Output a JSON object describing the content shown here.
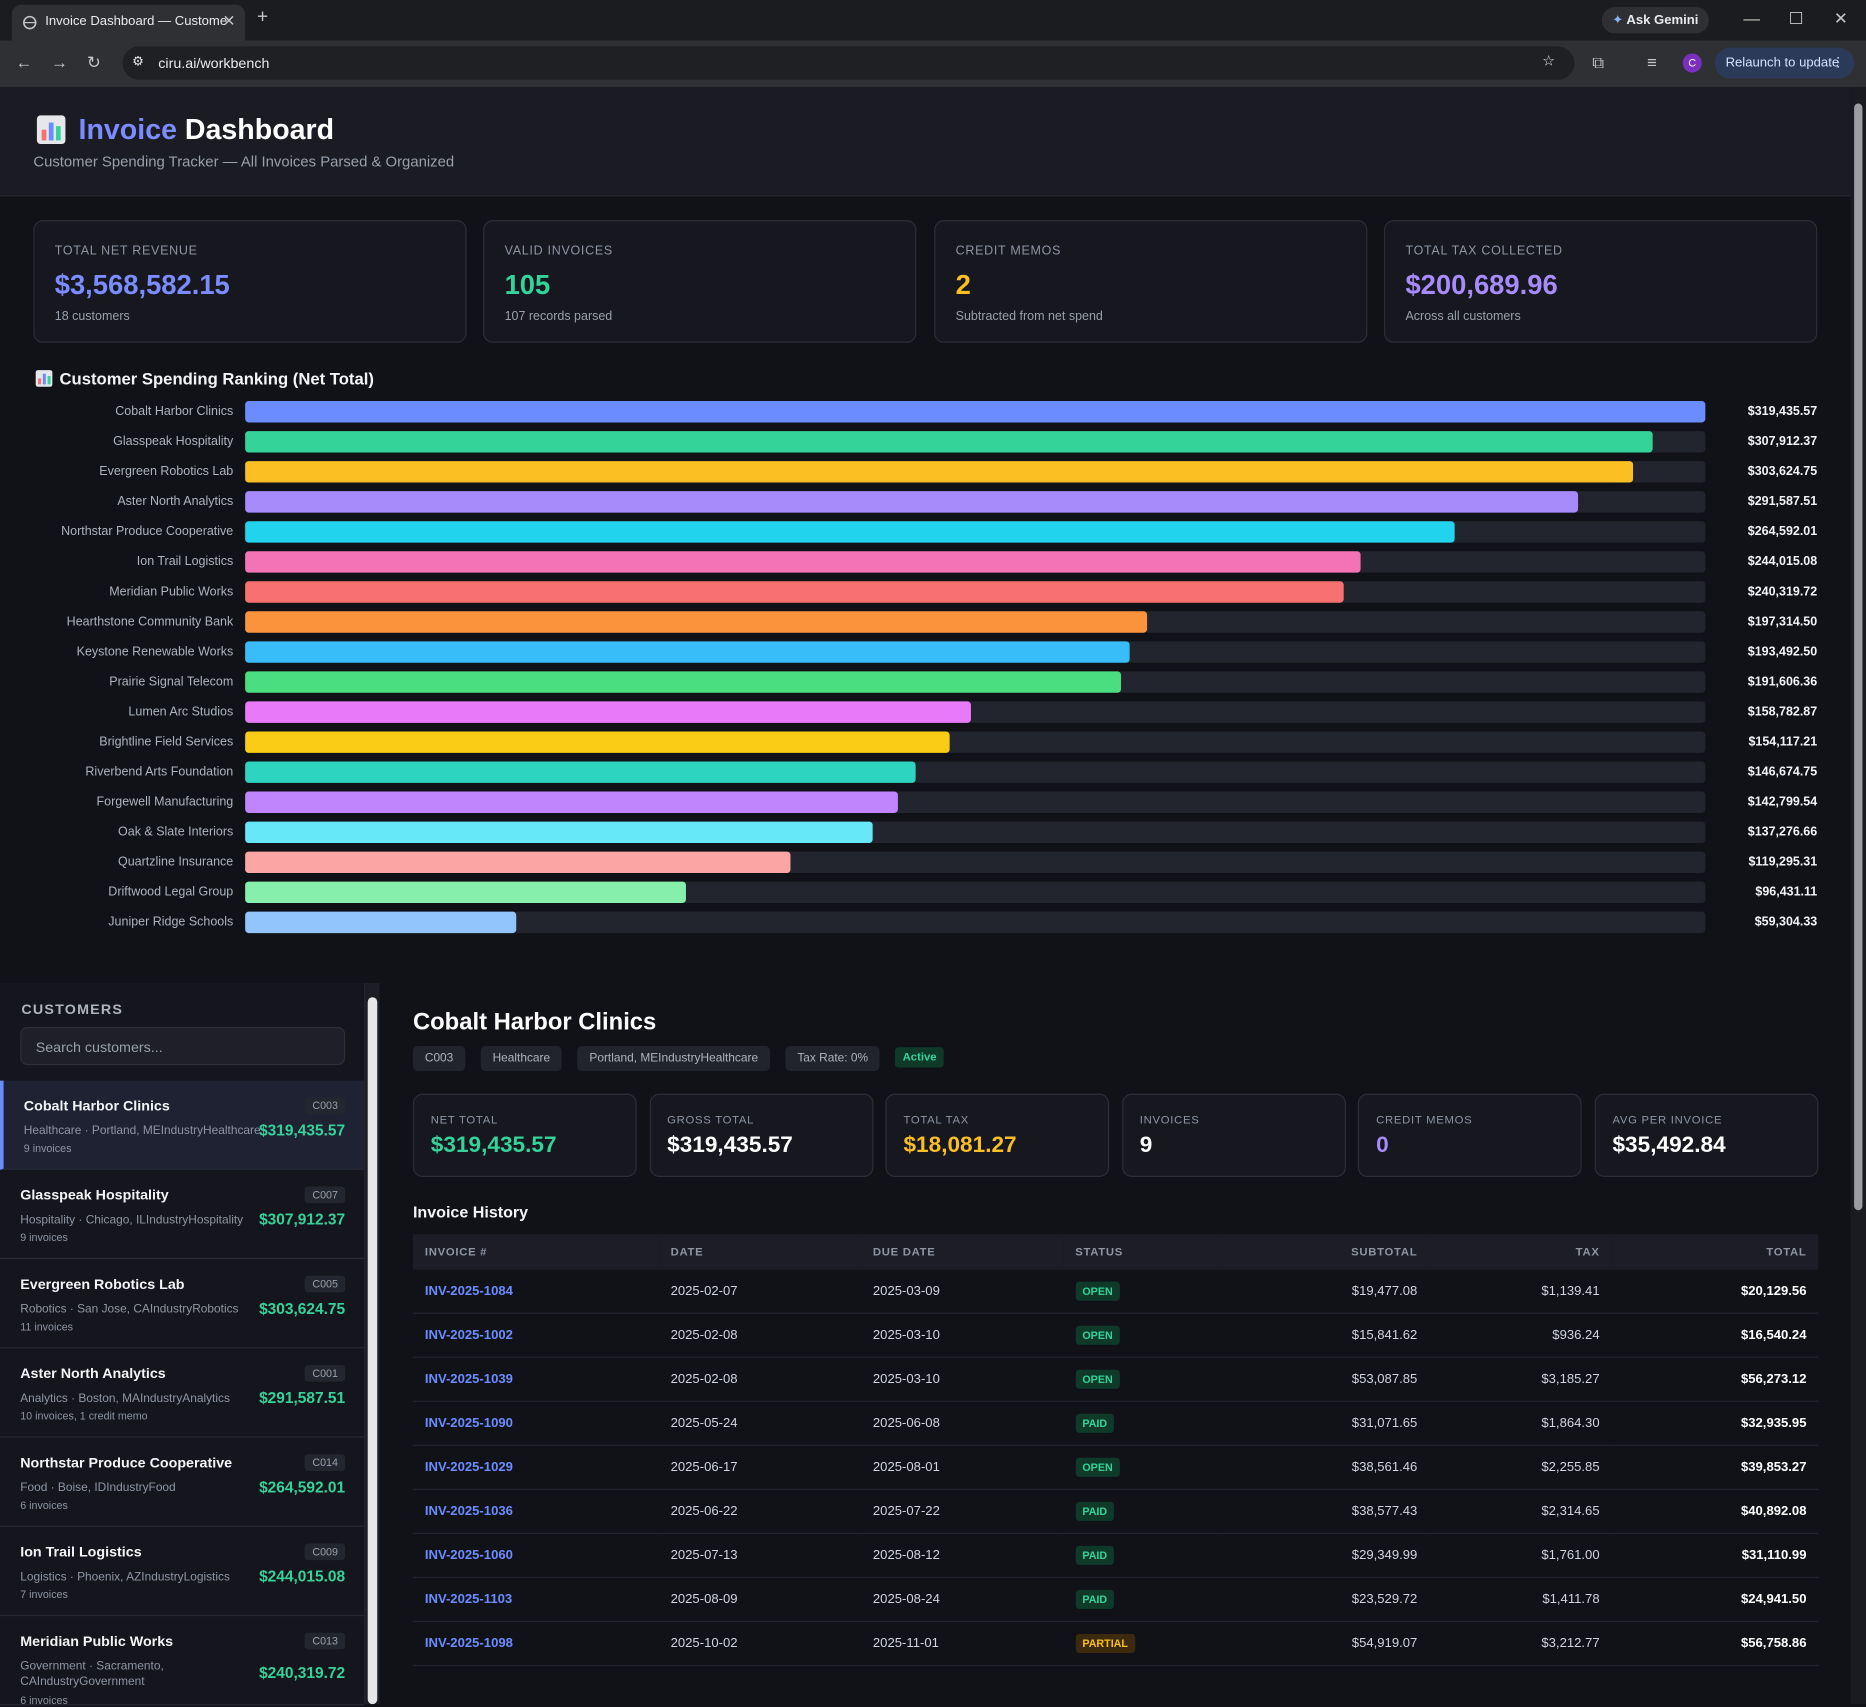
{
  "browser": {
    "tab_title": "Invoice Dashboard — Custome",
    "new_tab": "+",
    "ask_gemini": "Ask Gemini",
    "url": "ciru.ai/workbench",
    "profile": "C",
    "relaunch": "Relaunch to update"
  },
  "header": {
    "title_accent": "Invoice",
    "title_rest": "Dashboard",
    "subtitle": "Customer Spending Tracker — All Invoices Parsed & Organized"
  },
  "stats": [
    {
      "label": "TOTAL NET REVENUE",
      "value": "$3,568,582.15",
      "note": "18 customers"
    },
    {
      "label": "VALID INVOICES",
      "value": "105",
      "note": "107 records parsed"
    },
    {
      "label": "CREDIT MEMOS",
      "value": "2",
      "note": "Subtracted from net spend"
    },
    {
      "label": "TOTAL TAX COLLECTED",
      "value": "$200,689.96",
      "note": "Across all customers"
    }
  ],
  "chart_data": {
    "type": "bar",
    "orientation": "horizontal",
    "title": "Customer Spending Ranking (Net Total)",
    "categories": [
      "Cobalt Harbor Clinics",
      "Glasspeak Hospitality",
      "Evergreen Robotics Lab",
      "Aster North Analytics",
      "Northstar Produce Cooperative",
      "Ion Trail Logistics",
      "Meridian Public Works",
      "Hearthstone Community Bank",
      "Keystone Renewable Works",
      "Prairie Signal Telecom",
      "Lumen Arc Studios",
      "Brightline Field Services",
      "Riverbend Arts Foundation",
      "Forgewell Manufacturing",
      "Oak & Slate Interiors",
      "Quartzline Insurance",
      "Driftwood Legal Group",
      "Juniper Ridge Schools"
    ],
    "values": [
      319435.57,
      307912.37,
      303624.75,
      291587.51,
      264592.01,
      244015.08,
      240319.72,
      197314.5,
      193492.5,
      191606.36,
      158782.87,
      154117.21,
      146674.75,
      142799.54,
      137276.66,
      119295.31,
      96431.11,
      59304.33
    ],
    "value_labels": [
      "$319,435.57",
      "$307,912.37",
      "$303,624.75",
      "$291,587.51",
      "$264,592.01",
      "$244,015.08",
      "$240,319.72",
      "$197,314.50",
      "$193,492.50",
      "$191,606.36",
      "$158,782.87",
      "$154,117.21",
      "$146,674.75",
      "$142,799.54",
      "$137,276.66",
      "$119,295.31",
      "$96,431.11",
      "$59,304.33"
    ],
    "colors": [
      "#6b8cff",
      "#34d399",
      "#fbbf24",
      "#a78bfa",
      "#22d3ee",
      "#f472b6",
      "#f87171",
      "#fb923c",
      "#38bdf8",
      "#4ade80",
      "#e879f9",
      "#facc15",
      "#2dd4bf",
      "#c084fc",
      "#67e8f9",
      "#fca5a5",
      "#86efac",
      "#93c5fd"
    ]
  },
  "customers": {
    "heading": "CUSTOMERS",
    "search_placeholder": "Search customers...",
    "items": [
      {
        "name": "Cobalt Harbor Clinics",
        "id": "C003",
        "meta": "Healthcare · Portland, MEIndustryHealthcare",
        "count": "9 invoices",
        "total": "$319,435.57"
      },
      {
        "name": "Glasspeak Hospitality",
        "id": "C007",
        "meta": "Hospitality · Chicago, ILIndustryHospitality",
        "count": "9 invoices",
        "total": "$307,912.37"
      },
      {
        "name": "Evergreen Robotics Lab",
        "id": "C005",
        "meta": "Robotics · San Jose, CAIndustryRobotics",
        "count": "11 invoices",
        "total": "$303,624.75"
      },
      {
        "name": "Aster North Analytics",
        "id": "C001",
        "meta": "Analytics · Boston, MAIndustryAnalytics",
        "count": "10 invoices, 1 credit memo",
        "total": "$291,587.51"
      },
      {
        "name": "Northstar Produce Cooperative",
        "id": "C014",
        "meta": "Food · Boise, IDIndustryFood",
        "count": "6 invoices",
        "total": "$264,592.01"
      },
      {
        "name": "Ion Trail Logistics",
        "id": "C009",
        "meta": "Logistics · Phoenix, AZIndustryLogistics",
        "count": "7 invoices",
        "total": "$244,015.08"
      },
      {
        "name": "Meridian Public Works",
        "id": "C013",
        "meta": "Government · Sacramento, CAIndustryGovernment",
        "count": "6 invoices",
        "total": "$240,319.72"
      }
    ]
  },
  "detail": {
    "name": "Cobalt Harbor Clinics",
    "tags": [
      "C003",
      "Healthcare",
      "Portland, MEIndustryHealthcare",
      "Tax Rate: 0%"
    ],
    "status": "Active",
    "stats": [
      {
        "label": "NET TOTAL",
        "value": "$319,435.57"
      },
      {
        "label": "GROSS TOTAL",
        "value": "$319,435.57"
      },
      {
        "label": "TOTAL TAX",
        "value": "$18,081.27"
      },
      {
        "label": "INVOICES",
        "value": "9"
      },
      {
        "label": "CREDIT MEMOS",
        "value": "0"
      },
      {
        "label": "AVG PER INVOICE",
        "value": "$35,492.84"
      }
    ],
    "history_title": "Invoice History",
    "table": {
      "columns": [
        "INVOICE #",
        "DATE",
        "DUE DATE",
        "STATUS",
        "SUBTOTAL",
        "TAX",
        "TOTAL"
      ],
      "rows": [
        [
          "INV-2025-1084",
          "2025-02-07",
          "2025-03-09",
          "OPEN",
          "$19,477.08",
          "$1,139.41",
          "$20,129.56"
        ],
        [
          "INV-2025-1002",
          "2025-02-08",
          "2025-03-10",
          "OPEN",
          "$15,841.62",
          "$936.24",
          "$16,540.24"
        ],
        [
          "INV-2025-1039",
          "2025-02-08",
          "2025-03-10",
          "OPEN",
          "$53,087.85",
          "$3,185.27",
          "$56,273.12"
        ],
        [
          "INV-2025-1090",
          "2025-05-24",
          "2025-06-08",
          "PAID",
          "$31,071.65",
          "$1,864.30",
          "$32,935.95"
        ],
        [
          "INV-2025-1029",
          "2025-06-17",
          "2025-08-01",
          "OPEN",
          "$38,561.46",
          "$2,255.85",
          "$39,853.27"
        ],
        [
          "INV-2025-1036",
          "2025-06-22",
          "2025-07-22",
          "PAID",
          "$38,577.43",
          "$2,314.65",
          "$40,892.08"
        ],
        [
          "INV-2025-1060",
          "2025-07-13",
          "2025-08-12",
          "PAID",
          "$29,349.99",
          "$1,761.00",
          "$31,110.99"
        ],
        [
          "INV-2025-1103",
          "2025-08-09",
          "2025-08-24",
          "PAID",
          "$23,529.72",
          "$1,411.78",
          "$24,941.50"
        ],
        [
          "INV-2025-1098",
          "2025-10-02",
          "2025-11-01",
          "PARTIAL",
          "$54,919.07",
          "$3,212.77",
          "$56,758.86"
        ]
      ]
    }
  }
}
